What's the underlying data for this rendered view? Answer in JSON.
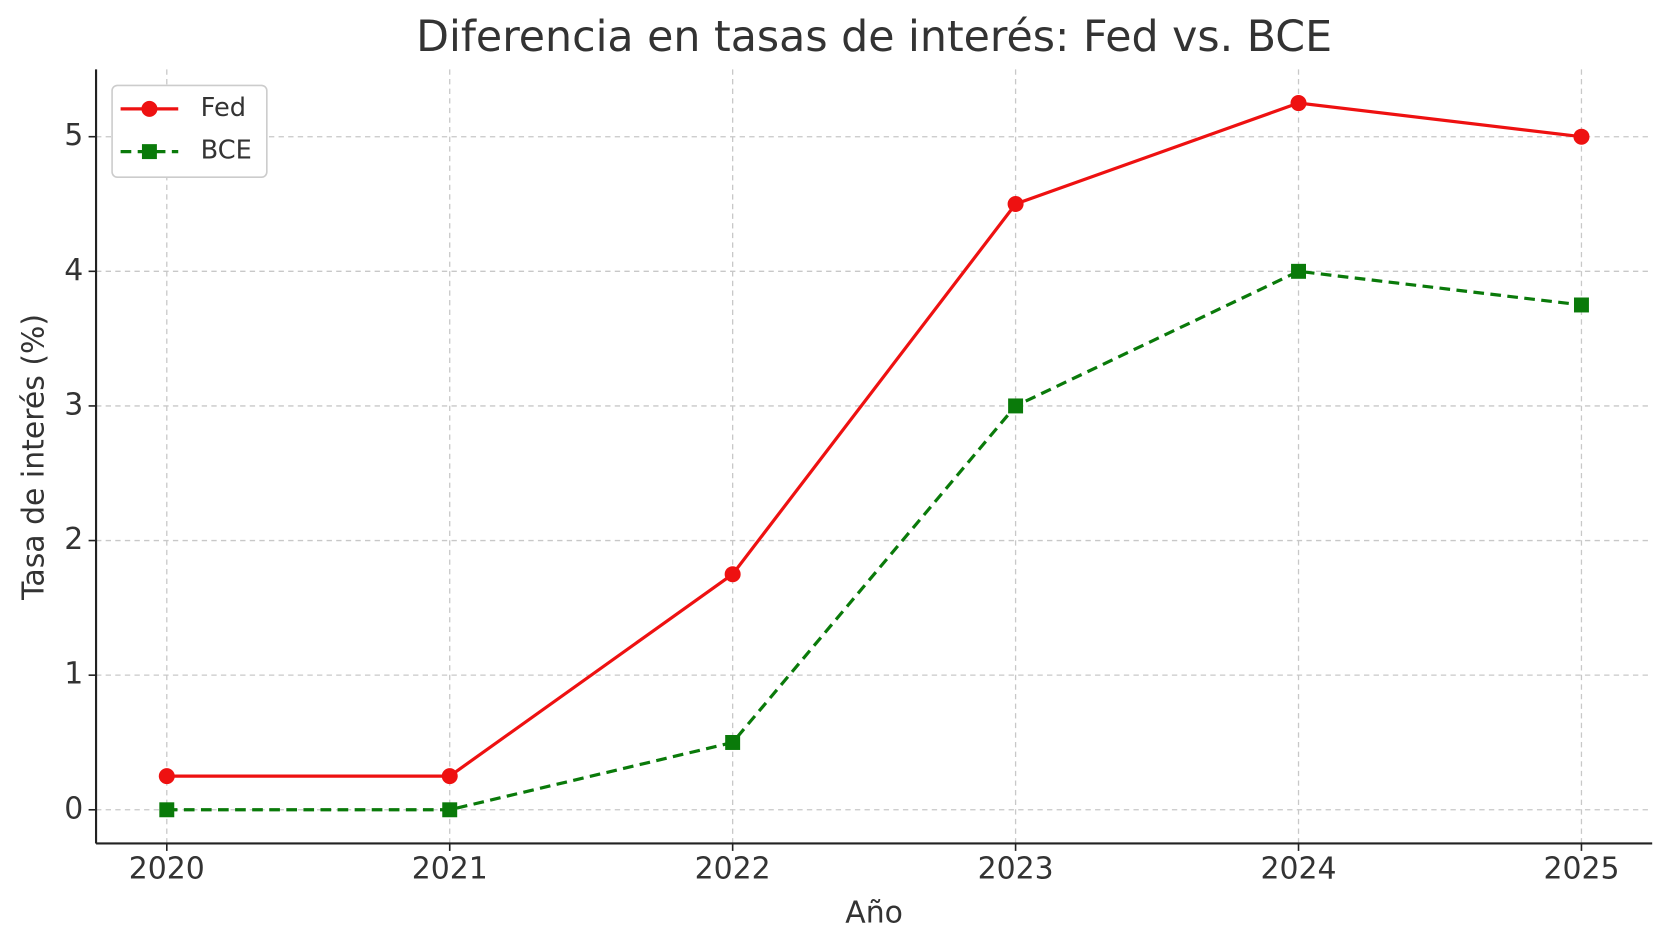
{
  "chart_data": {
    "type": "line",
    "title": "Diferencia en tasas de interés: Fed vs. BCE",
    "x_label": "Año",
    "y_label": "Tasa de interés (%)",
    "x": [
      2020,
      2021,
      2022,
      2023,
      2024,
      2025
    ],
    "series": [
      {
        "name": "Fed",
        "color": "#ee1111",
        "marker": "circle",
        "dash": false,
        "values": [
          0.25,
          0.25,
          1.75,
          4.5,
          5.25,
          5.0
        ]
      },
      {
        "name": "BCE",
        "color": "#0a7a0a",
        "marker": "square",
        "dash": true,
        "values": [
          0,
          0,
          0.5,
          3,
          4,
          3.75
        ]
      }
    ],
    "xlim": [
      2019.75,
      2025.25
    ],
    "xticks": [
      2020,
      2021,
      2022,
      2023,
      2024,
      2025
    ],
    "ylim": [
      -0.25,
      5.5
    ],
    "yticks": [
      0,
      1,
      2,
      3,
      4,
      5
    ],
    "grid": true,
    "legend": "upper-left"
  }
}
